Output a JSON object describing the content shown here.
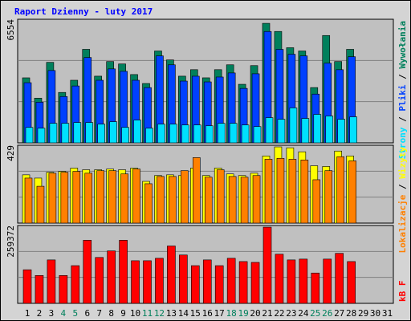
{
  "title": "Raport Dzienny -  luty 2017",
  "legend_separator": " / ",
  "chart_data": [
    {
      "type": "bar",
      "ylim": [
        0,
        6554
      ],
      "yticks": [
        6554
      ],
      "series": [
        {
          "name": "Wywołania",
          "color": "#00805c",
          "values": [
            3448,
            2371,
            4269,
            2673,
            3320,
            4959,
            3536,
            4312,
            4183,
            3622,
            3148,
            4872,
            4398,
            3536,
            3881,
            3449,
            3881,
            4139,
            3105,
            4096,
            6338,
            5907,
            5045,
            4872,
            2932,
            5692,
            4312,
            4959,
            null,
            null,
            null
          ]
        },
        {
          "name": "Pliki",
          "color": "#0040ff",
          "values": [
            3190,
            2155,
            3836,
            2457,
            3017,
            4526,
            3319,
            3922,
            3793,
            3319,
            2931,
            4612,
            4138,
            3276,
            3534,
            3233,
            3491,
            3707,
            2888,
            3664,
            5905,
            4957,
            4698,
            4612,
            2586,
            4224,
            3879,
            4569,
            null,
            null,
            null
          ]
        },
        {
          "name": "Strony",
          "color": "#00e0ff",
          "values": [
            819,
            776,
            1034,
            1034,
            1078,
            1078,
            991,
            1121,
            819,
            1207,
            776,
            991,
            991,
            948,
            948,
            905,
            1034,
            1034,
            948,
            862,
            1336,
            1250,
            1853,
            1293,
            1509,
            1422,
            1250,
            1379,
            null,
            null,
            null
          ]
        }
      ]
    },
    {
      "type": "bar",
      "ylim": [
        0,
        429
      ],
      "yticks": [
        429
      ],
      "series": [
        {
          "name": "Wizyty",
          "color": "#ffff00",
          "values": [
            266,
            248,
            280,
            285,
            303,
            294,
            294,
            298,
            294,
            303,
            230,
            262,
            266,
            262,
            303,
            262,
            303,
            271,
            262,
            275,
            370,
            420,
            415,
            393,
            316,
            312,
            397,
            370,
            null,
            null,
            null
          ]
        },
        {
          "name": "Lokalizacje",
          "color": "#ff8000",
          "values": [
            248,
            203,
            275,
            280,
            285,
            275,
            289,
            289,
            271,
            298,
            217,
            257,
            257,
            289,
            361,
            253,
            294,
            257,
            253,
            262,
            352,
            357,
            352,
            348,
            239,
            289,
            366,
            343,
            null,
            null,
            null
          ]
        }
      ]
    },
    {
      "type": "bar",
      "ylim": [
        0,
        259372
      ],
      "yticks": [
        259372
      ],
      "categories": [
        "1",
        "2",
        "3",
        "4",
        "5",
        "6",
        "7",
        "8",
        "9",
        "10",
        "11",
        "12",
        "13",
        "14",
        "15",
        "16",
        "17",
        "18",
        "19",
        "20",
        "21",
        "22",
        "23",
        "24",
        "25",
        "26",
        "27",
        "28",
        "29",
        "30",
        "31"
      ],
      "category_colors": [
        "#000000",
        "#000000",
        "#000000",
        "#00805c",
        "#00805c",
        "#000000",
        "#000000",
        "#000000",
        "#000000",
        "#000000",
        "#00805c",
        "#00805c",
        "#000000",
        "#000000",
        "#000000",
        "#000000",
        "#000000",
        "#00805c",
        "#00805c",
        "#000000",
        "#000000",
        "#000000",
        "#000000",
        "#000000",
        "#00805c",
        "#00805c",
        "#000000",
        "#000000",
        "#000000",
        "#000000",
        "#000000"
      ],
      "series": [
        {
          "name": "kB F",
          "color": "#ff0000",
          "values": [
            111934,
            92827,
            144701,
            92827,
            125590,
            210232,
            152897,
            174741,
            210232,
            141974,
            141974,
            150165,
            191119,
            161087,
            125590,
            144701,
            125590,
            150165,
            139245,
            136515,
            253918,
            163817,
            144701,
            147435,
            101021,
            147435,
            166548,
            139245,
            null,
            null,
            null
          ]
        }
      ]
    }
  ]
}
